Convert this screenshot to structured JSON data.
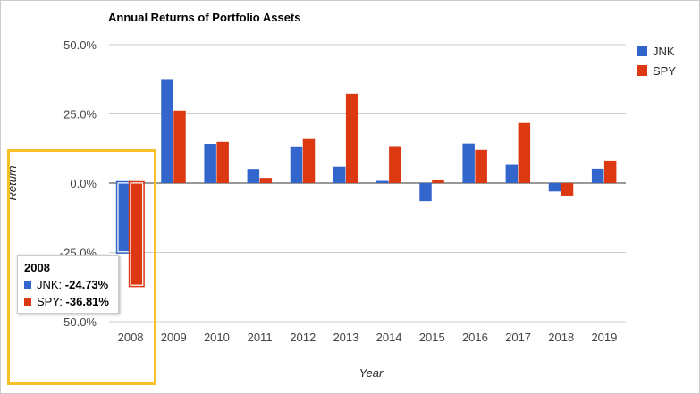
{
  "colors": {
    "JNK": "#3366cc",
    "SPY": "#dc3912",
    "grid": "#cccccc",
    "baseline": "#333333",
    "highlight": "#f6c026"
  },
  "chart_data": {
    "type": "bar",
    "title": "Annual Returns of Portfolio Assets",
    "xlabel": "Year",
    "ylabel": "Return",
    "categories": [
      "2008",
      "2009",
      "2010",
      "2011",
      "2012",
      "2013",
      "2014",
      "2015",
      "2016",
      "2017",
      "2018",
      "2019"
    ],
    "series": [
      {
        "name": "JNK",
        "values": [
          -24.73,
          37.6,
          14.2,
          5.1,
          13.3,
          5.9,
          0.8,
          -6.5,
          14.3,
          6.6,
          -3.0,
          5.2
        ]
      },
      {
        "name": "SPY",
        "values": [
          -36.81,
          26.2,
          14.9,
          1.9,
          15.9,
          32.3,
          13.4,
          1.2,
          12.0,
          21.7,
          -4.5,
          8.1
        ]
      }
    ],
    "ylim": [
      -50,
      50
    ],
    "yticks": [
      "50.0%",
      "25.0%",
      "0.0%",
      "-25.0%",
      "-50.0%"
    ],
    "ytick_values": [
      50,
      25,
      0,
      -25,
      -50
    ],
    "legend_position": "right",
    "grid": true
  },
  "tooltip": {
    "title": "2008",
    "rows": [
      {
        "label": "JNK:",
        "value": "-24.73%"
      },
      {
        "label": "SPY:",
        "value": "-36.81%"
      }
    ]
  }
}
